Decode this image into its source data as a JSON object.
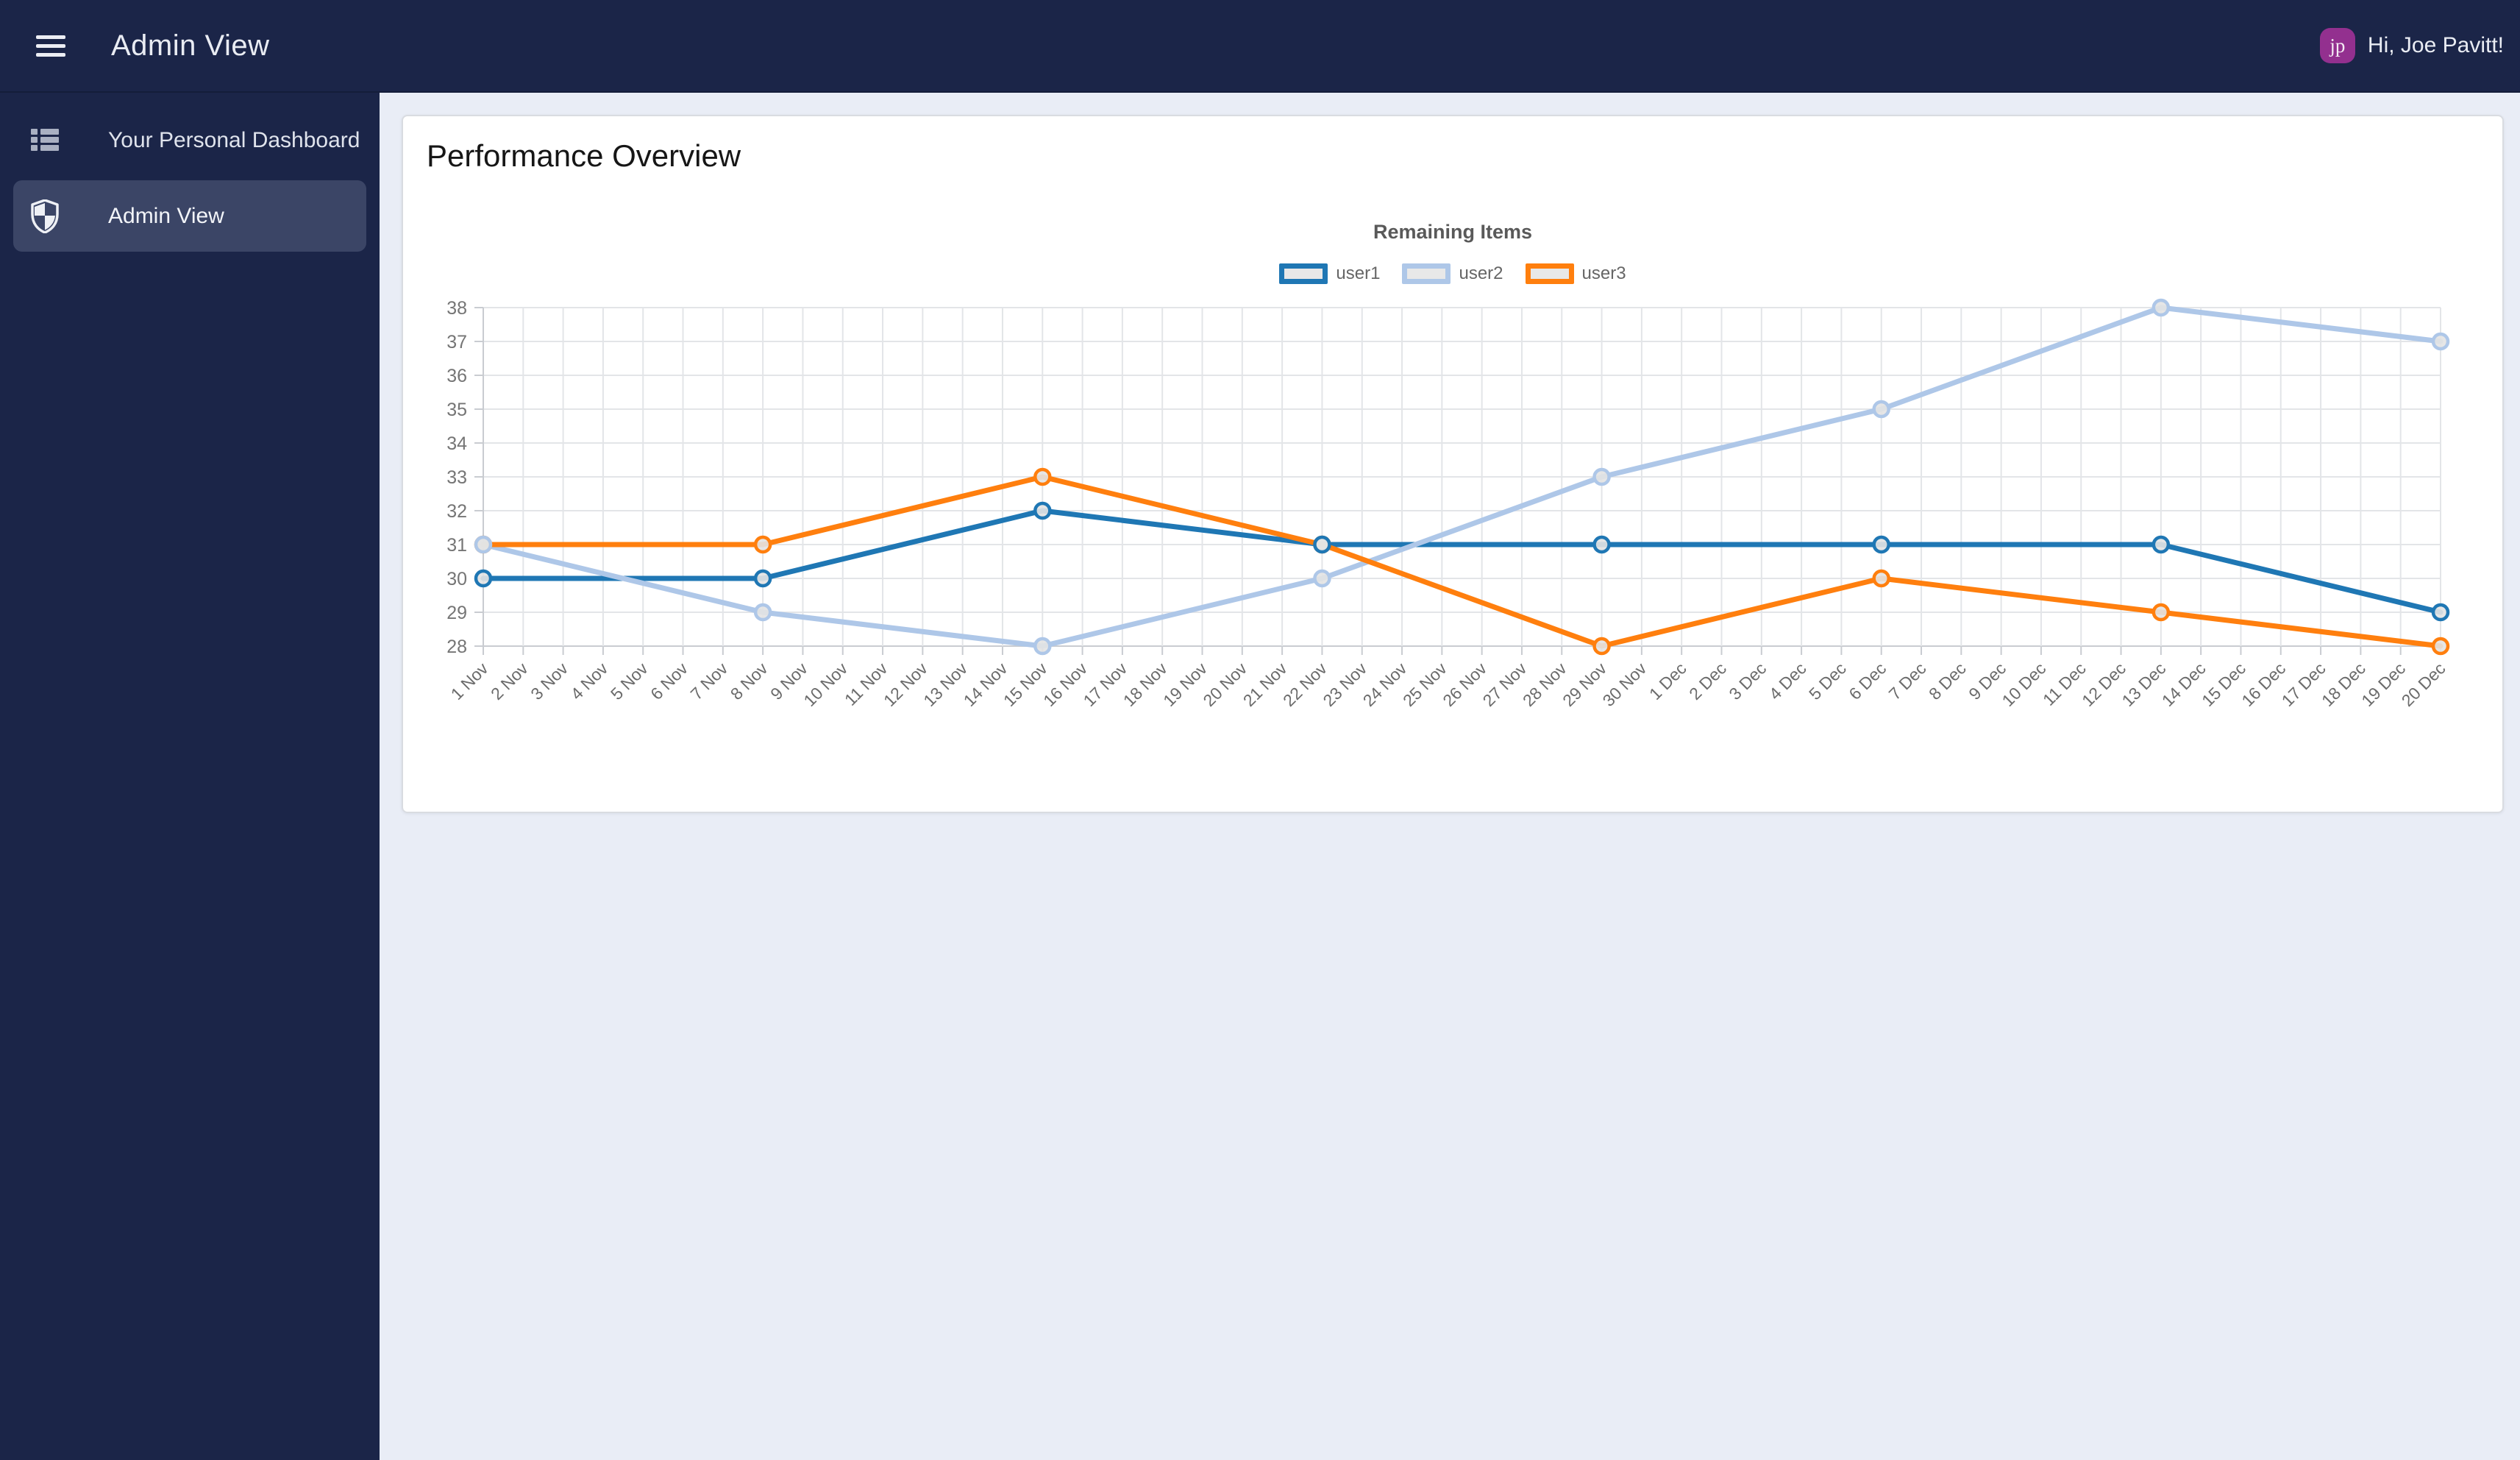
{
  "topbar": {
    "title": "Admin View",
    "greeting": "Hi, Joe Pavitt!",
    "avatar_initials": "jp"
  },
  "sidebar": {
    "items": [
      {
        "label": "Your Personal Dashboard",
        "icon": "list-icon",
        "active": false
      },
      {
        "label": "Admin View",
        "icon": "shield-icon",
        "active": true
      }
    ]
  },
  "main": {
    "card_title": "Performance Overview"
  },
  "theme": {
    "navbar_bg": "#1b2548",
    "sidebar_active_bg": "#3b4566",
    "avatar_bg": "#93308f",
    "content_bg": "#e9edf6",
    "card_bg": "#ffffff"
  },
  "chart_data": {
    "type": "line",
    "title": "Remaining Items",
    "xlabel": "",
    "ylabel": "",
    "ylim": [
      28,
      38
    ],
    "y_ticks": [
      28,
      29,
      30,
      31,
      32,
      33,
      34,
      35,
      36,
      37,
      38
    ],
    "grid": true,
    "legend_position": "top",
    "point_fill": "#e3e3e3",
    "x_tick_labels": [
      "1 Nov",
      "2 Nov",
      "3 Nov",
      "4 Nov",
      "5 Nov",
      "6 Nov",
      "7 Nov",
      "8 Nov",
      "9 Nov",
      "10 Nov",
      "11 Nov",
      "12 Nov",
      "13 Nov",
      "14 Nov",
      "15 Nov",
      "16 Nov",
      "17 Nov",
      "18 Nov",
      "19 Nov",
      "20 Nov",
      "21 Nov",
      "22 Nov",
      "23 Nov",
      "24 Nov",
      "25 Nov",
      "26 Nov",
      "27 Nov",
      "28 Nov",
      "29 Nov",
      "30 Nov",
      "1 Dec",
      "2 Dec",
      "3 Dec",
      "4 Dec",
      "5 Dec",
      "6 Dec",
      "7 Dec",
      "8 Dec",
      "9 Dec",
      "10 Dec",
      "11 Dec",
      "12 Dec",
      "13 Dec",
      "14 Dec",
      "15 Dec",
      "16 Dec",
      "17 Dec",
      "18 Dec",
      "19 Dec",
      "20 Dec"
    ],
    "series": [
      {
        "name": "user1",
        "color": "#1f77b4",
        "points": [
          {
            "x": "1 Nov",
            "y": 30
          },
          {
            "x": "8 Nov",
            "y": 30
          },
          {
            "x": "15 Nov",
            "y": 32
          },
          {
            "x": "22 Nov",
            "y": 31
          },
          {
            "x": "29 Nov",
            "y": 31
          },
          {
            "x": "6 Dec",
            "y": 31
          },
          {
            "x": "13 Dec",
            "y": 31
          },
          {
            "x": "20 Dec",
            "y": 29
          }
        ]
      },
      {
        "name": "user2",
        "color": "#aec7e8",
        "points": [
          {
            "x": "1 Nov",
            "y": 31
          },
          {
            "x": "8 Nov",
            "y": 29
          },
          {
            "x": "15 Nov",
            "y": 28
          },
          {
            "x": "22 Nov",
            "y": 30
          },
          {
            "x": "29 Nov",
            "y": 33
          },
          {
            "x": "6 Dec",
            "y": 35
          },
          {
            "x": "13 Dec",
            "y": 38
          },
          {
            "x": "20 Dec",
            "y": 37
          }
        ]
      },
      {
        "name": "user3",
        "color": "#ff7f0e",
        "points": [
          {
            "x": "1 Nov",
            "y": 31
          },
          {
            "x": "8 Nov",
            "y": 31
          },
          {
            "x": "15 Nov",
            "y": 33
          },
          {
            "x": "22 Nov",
            "y": 31
          },
          {
            "x": "29 Nov",
            "y": 28
          },
          {
            "x": "6 Dec",
            "y": 30
          },
          {
            "x": "13 Dec",
            "y": 29
          },
          {
            "x": "20 Dec",
            "y": 28
          }
        ]
      }
    ]
  }
}
